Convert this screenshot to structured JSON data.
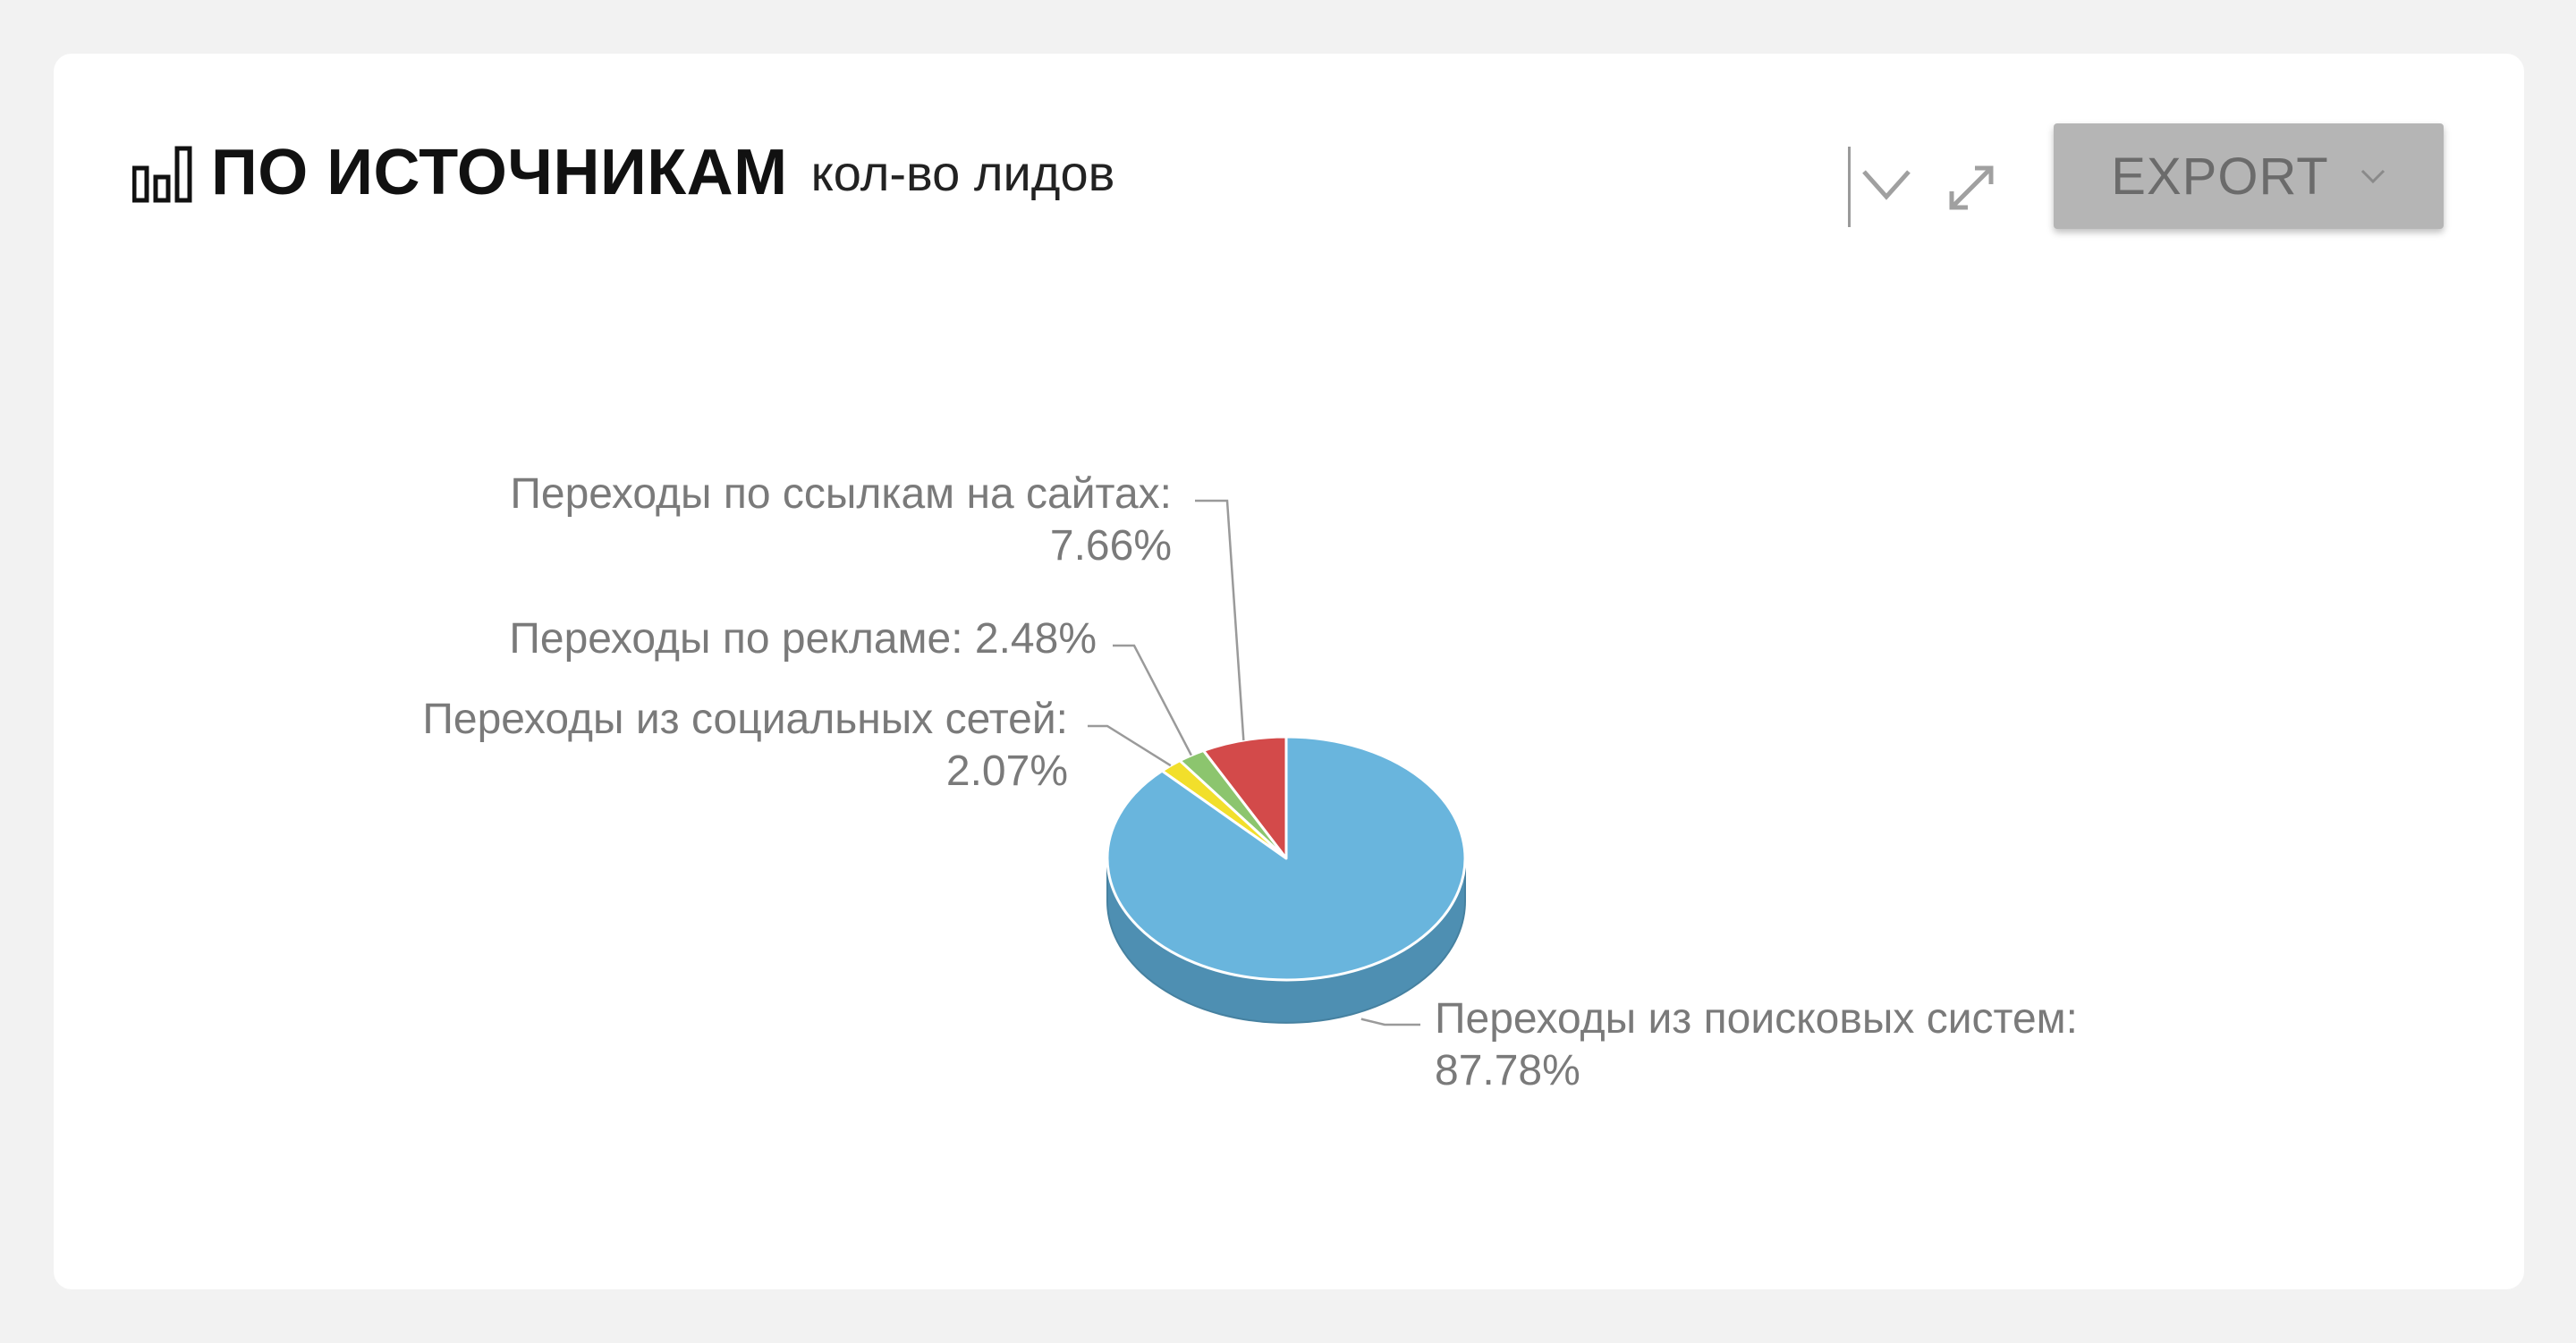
{
  "header": {
    "title": "ПО ИСТОЧНИКАМ",
    "subtitle": "кол-во лидов",
    "export_label": "EXPORT"
  },
  "icons": {
    "title": "bar-chart-icon",
    "collapse": "chevron-down-icon",
    "expand": "expand-icon",
    "export_caret": "chevron-down-icon"
  },
  "colors": {
    "slice_search": "#69b5dd",
    "slice_search_side": "#4e8fb2",
    "slice_links": "#d34a4a",
    "slice_ads": "#8cc56e",
    "slice_social": "#f2df2b",
    "export_bg": "#b5b5b5",
    "label_text": "#7a7a7a"
  },
  "chart_data": {
    "type": "pie",
    "style": "3d",
    "slices": [
      {
        "label": "Переходы по ссылкам на сайтах:",
        "value": 7.66,
        "value_text": "7.66%",
        "color": "#d34a4a"
      },
      {
        "label": "Переходы по рекламе:",
        "value": 2.48,
        "value_text": "2.48%",
        "color": "#8cc56e"
      },
      {
        "label": "Переходы из социальных сетей:",
        "value": 2.07,
        "value_text": "2.07%",
        "color": "#f2df2b"
      },
      {
        "label": "Переходы из поисковых систем:",
        "value": 87.78,
        "value_text": "87.78%",
        "color": "#69b5dd"
      }
    ],
    "start": "top",
    "direction": "counterclockwise",
    "labels": "outside with leader lines"
  }
}
